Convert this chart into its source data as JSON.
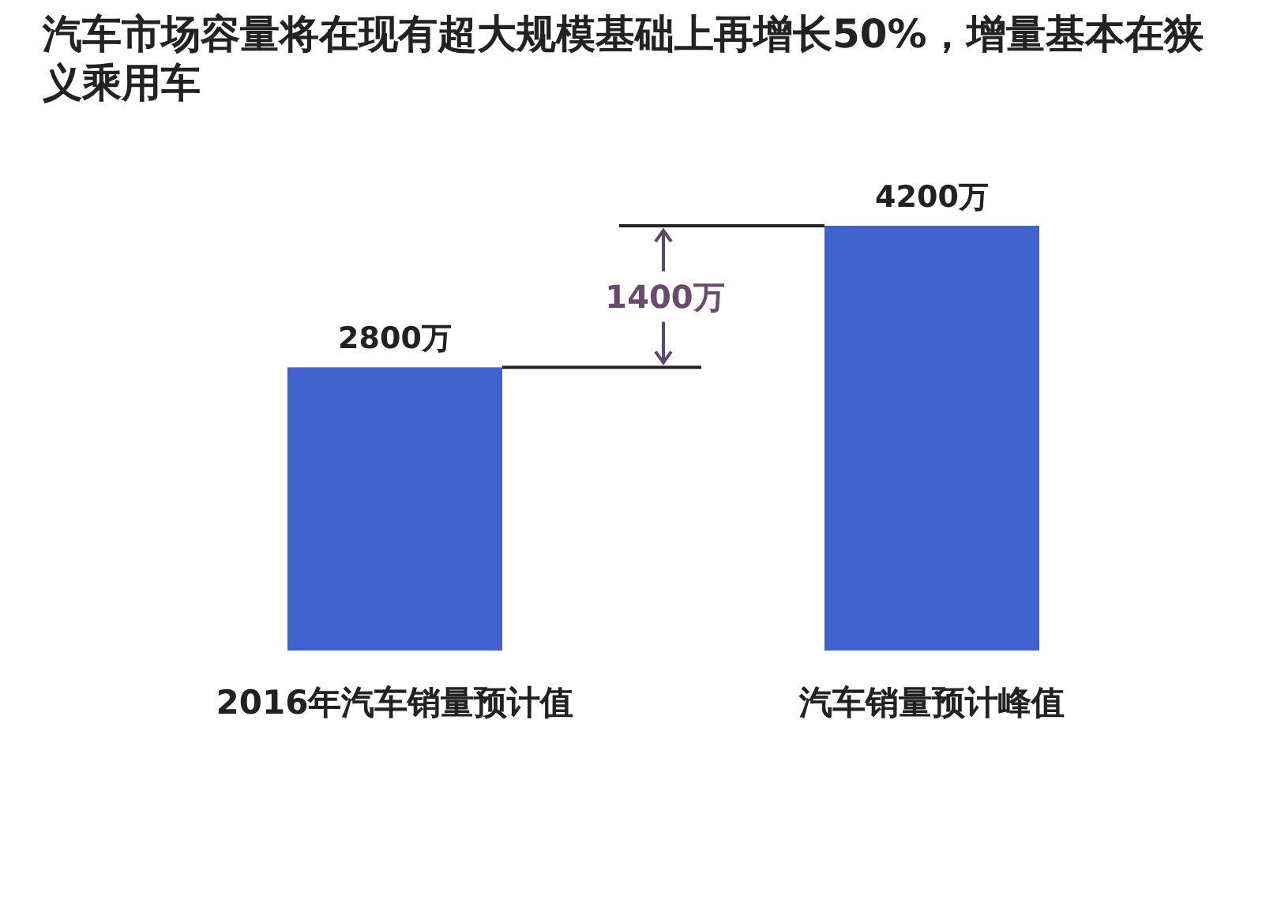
{
  "chart_data": {
    "type": "bar",
    "title": "汽车市场容量将在现有超大规模基础上再增长50%，增量基本在狭义乘用车",
    "categories": [
      "2016年汽车销量预计值",
      "汽车销量预计峰值"
    ],
    "values": [
      2800,
      4200
    ],
    "value_labels": [
      "2800万",
      "4200万"
    ],
    "color": "#4062cf",
    "annotations": [
      "1400万"
    ]
  }
}
